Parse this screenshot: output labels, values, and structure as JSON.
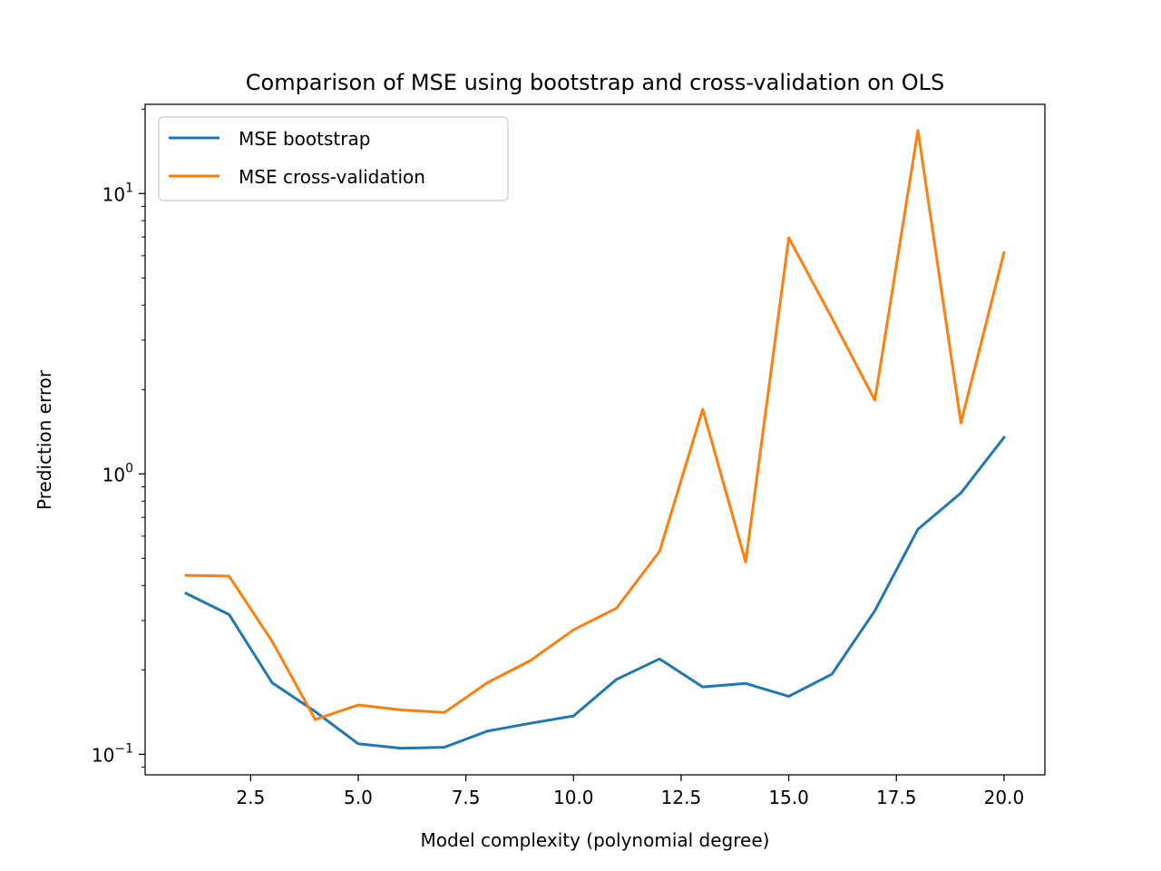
{
  "chart_data": {
    "type": "line",
    "title": "Comparison of MSE using bootstrap and cross-validation on OLS",
    "xlabel": "Model complexity (polynomial degree)",
    "ylabel": "Prediction error",
    "yscale": "log",
    "xlim": [
      0.05,
      20.95
    ],
    "ylim": [
      0.0845,
      20.8
    ],
    "xticks": [
      2.5,
      5.0,
      7.5,
      10.0,
      12.5,
      15.0,
      17.5,
      20.0
    ],
    "xtick_labels": [
      "2.5",
      "5.0",
      "7.5",
      "10.0",
      "12.5",
      "15.0",
      "17.5",
      "20.0"
    ],
    "yticks": [
      {
        "value": 0.1,
        "base": "10",
        "exp": "−1"
      },
      {
        "value": 1,
        "base": "10",
        "exp": "0"
      },
      {
        "value": 10,
        "base": "10",
        "exp": "1"
      }
    ],
    "x": [
      1,
      2,
      3,
      4,
      5,
      6,
      7,
      8,
      9,
      10,
      11,
      12,
      13,
      14,
      15,
      16,
      17,
      18,
      19,
      20
    ],
    "series": [
      {
        "name": "MSE bootstrap",
        "color": "#1f77b4",
        "values": [
          0.375,
          0.315,
          0.18,
          0.142,
          0.109,
          0.105,
          0.106,
          0.121,
          0.129,
          0.137,
          0.185,
          0.219,
          0.174,
          0.179,
          0.161,
          0.193,
          0.325,
          0.635,
          0.855,
          1.35
        ]
      },
      {
        "name": "MSE cross-validation",
        "color": "#ff7f0e",
        "values": [
          0.435,
          0.432,
          0.253,
          0.133,
          0.15,
          0.144,
          0.141,
          0.18,
          0.216,
          0.278,
          0.332,
          0.53,
          1.7,
          0.485,
          6.95,
          3.6,
          1.83,
          16.8,
          1.52,
          6.15
        ]
      }
    ],
    "legend_position": "upper-left",
    "grid": false
  }
}
